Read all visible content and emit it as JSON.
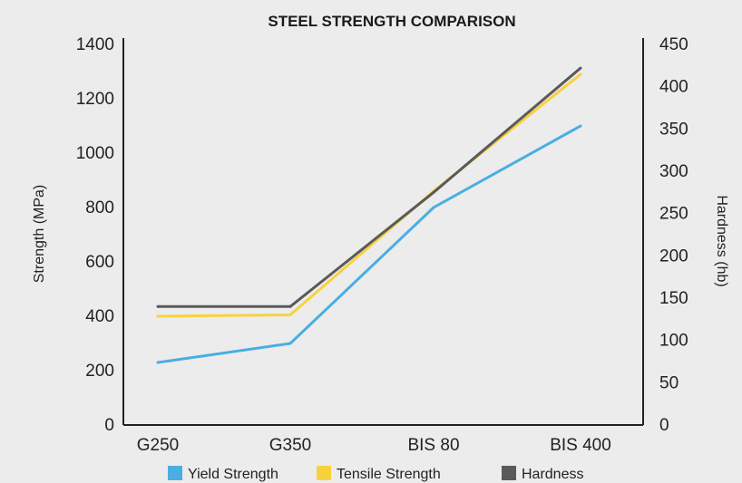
{
  "chart_data": {
    "type": "line",
    "title": "STEEL STRENGTH COMPARISON",
    "categories": [
      "G250",
      "G350",
      "BIS 80",
      "BIS 400"
    ],
    "ylabel": "Strength (MPa)",
    "y2label": "Hardness (hb)",
    "ylim": [
      0,
      1400
    ],
    "yticks": [
      "0",
      "200",
      "400",
      "600",
      "800",
      "1000",
      "1200",
      "1400"
    ],
    "y2lim": [
      0,
      450
    ],
    "y2ticks": [
      "0",
      "50",
      "100",
      "150",
      "200",
      "250",
      "300",
      "350",
      "400",
      "450"
    ],
    "grid": false,
    "legend_position": "bottom",
    "series": [
      {
        "name": "Yield Strength",
        "axis": "left",
        "color": "#4aaee2",
        "x": [
          "G250",
          "G350",
          "BIS 80",
          "BIS 400"
        ],
        "values": [
          230,
          300,
          800,
          1100
        ]
      },
      {
        "name": "Tensile Strength",
        "axis": "left",
        "color": "#f7d23e",
        "x": [
          "G250",
          "G350",
          "BIS 80",
          "BIS 400"
        ],
        "values": [
          400,
          405,
          860,
          1290
        ]
      },
      {
        "name": "Hardness",
        "axis": "right",
        "color": "#5a5a5a",
        "x": [
          "G250",
          "G350",
          "BIS 80",
          "BIS 400"
        ],
        "values": [
          140,
          140,
          275,
          422
        ]
      }
    ]
  }
}
